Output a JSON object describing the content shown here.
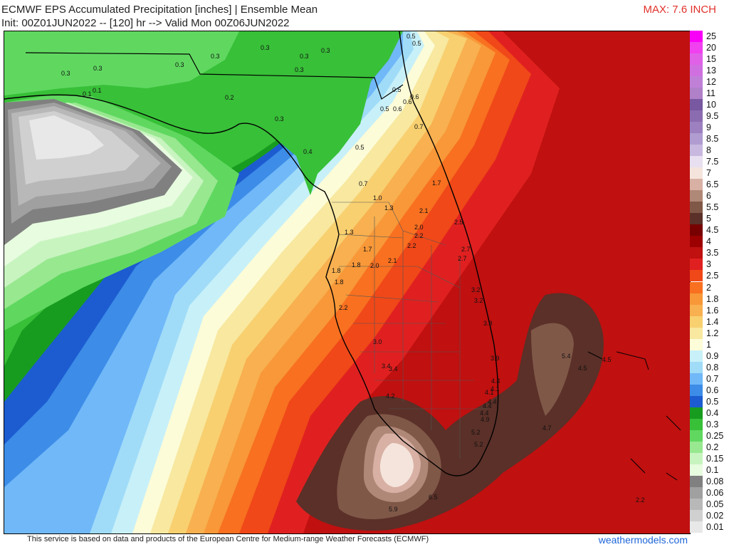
{
  "title": {
    "line1": "ECMWF EPS Accumulated Precipitation [inches] | Ensemble Mean",
    "line2": "Init: 00Z01JUN2022 -- [120] hr --> Valid Mon 00Z06JUN2022"
  },
  "max_label": "MAX: 7.6 INCH",
  "footer": {
    "credit": "This service is based on data and products of the European Centre for Medium-range Weather Forecasts (ECMWF)",
    "brand": "weathermodels.com"
  },
  "legend": [
    {
      "label": "25",
      "color": "#f800f8"
    },
    {
      "label": "20",
      "color": "#f040f0"
    },
    {
      "label": "15",
      "color": "#e060e8"
    },
    {
      "label": "13",
      "color": "#d070e0"
    },
    {
      "label": "12",
      "color": "#c080d8"
    },
    {
      "label": "11",
      "color": "#b080c8"
    },
    {
      "label": "10",
      "color": "#7858a0"
    },
    {
      "label": "9.5",
      "color": "#8c6cb0"
    },
    {
      "label": "9",
      "color": "#9c80c0"
    },
    {
      "label": "8.5",
      "color": "#b09cd0"
    },
    {
      "label": "8",
      "color": "#c8b8e0"
    },
    {
      "label": "7.5",
      "color": "#e8e0f0"
    },
    {
      "label": "7",
      "color": "#f4e4dc"
    },
    {
      "label": "6.5",
      "color": "#d8b0a4"
    },
    {
      "label": "6",
      "color": "#b08878"
    },
    {
      "label": "5.5",
      "color": "#805848"
    },
    {
      "label": "5",
      "color": "#5a3028"
    },
    {
      "label": "4.5",
      "color": "#780000"
    },
    {
      "label": "4",
      "color": "#9c0000"
    },
    {
      "label": "3.5",
      "color": "#c01010"
    },
    {
      "label": "3",
      "color": "#e02020"
    },
    {
      "label": "2.5",
      "color": "#f04818"
    },
    {
      "label": "2",
      "color": "#f87020"
    },
    {
      "label": "1.8",
      "color": "#f89838"
    },
    {
      "label": "1.6",
      "color": "#f8b050"
    },
    {
      "label": "1.4",
      "color": "#f8d070"
    },
    {
      "label": "1.2",
      "color": "#f8e8a0"
    },
    {
      "label": "1",
      "color": "#fcfcd8"
    },
    {
      "label": "0.9",
      "color": "#c8f0f8"
    },
    {
      "label": "0.8",
      "color": "#a0dcf8"
    },
    {
      "label": "0.7",
      "color": "#70b8f8"
    },
    {
      "label": "0.6",
      "color": "#3c8ce8"
    },
    {
      "label": "0.5",
      "color": "#1c5cd0"
    },
    {
      "label": "0.4",
      "color": "#189c20"
    },
    {
      "label": "0.3",
      "color": "#38c038"
    },
    {
      "label": "0.25",
      "color": "#60d860"
    },
    {
      "label": "0.2",
      "color": "#98e890"
    },
    {
      "label": "0.15",
      "color": "#c8f4c0"
    },
    {
      "label": "0.1",
      "color": "#e8fce0"
    },
    {
      "label": "0.08",
      "color": "#808080"
    },
    {
      "label": "0.06",
      "color": "#a0a0a0"
    },
    {
      "label": "0.05",
      "color": "#b8b8b8"
    },
    {
      "label": "0.02",
      "color": "#d0d0d0"
    },
    {
      "label": "0.01",
      "color": "#e8e8e8"
    }
  ],
  "point_values": [
    "0.3",
    "0.3",
    "0.3",
    "0.3",
    "0.3",
    "0.3",
    "0.3",
    "0.3",
    "0.1",
    "0.1",
    "0.2",
    "0.3",
    "0.4",
    "0.5",
    "0.5",
    "0.5",
    "0.6",
    "0.6",
    "0.5",
    "0.6",
    "0.7",
    "0.5",
    "0.7",
    "1.0",
    "1.3",
    "1.7",
    "2.1",
    "2.0",
    "2.2",
    "2.5",
    "1.3",
    "2.2",
    "1.7",
    "2.7",
    "2.7",
    "1.8",
    "2.0",
    "2.1",
    "1.8",
    "1.8",
    "3.2",
    "3.2",
    "2.2",
    "3.8",
    "3.0",
    "3.9",
    "3.4",
    "3.4",
    "5.4",
    "4.5",
    "4.5",
    "4.4",
    "4.1",
    "4.1",
    "4.4",
    "4.2",
    "4.4",
    "4.4",
    "4.9",
    "4.7",
    "5.2",
    "5.2",
    "6.5",
    "5.9",
    "2.2"
  ]
}
